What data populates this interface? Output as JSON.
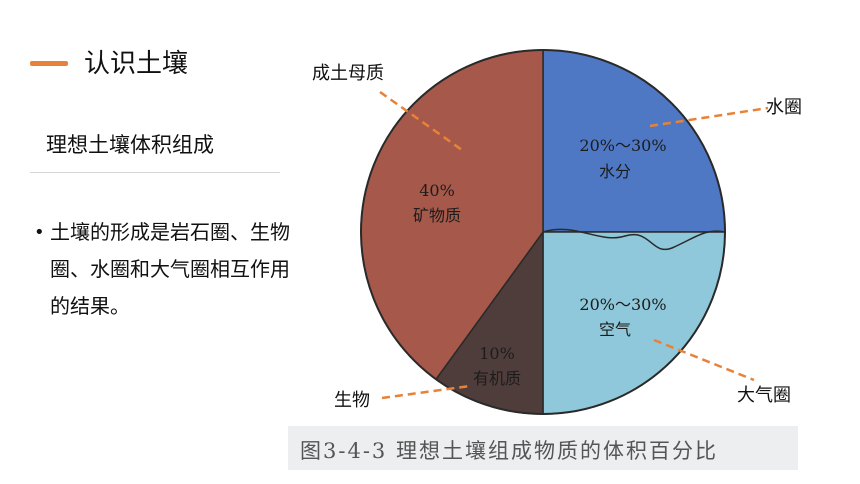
{
  "header": {
    "title": "认识土壤",
    "accent_color": "#e8823a"
  },
  "panel": {
    "subtitle": "理想土壤体积组成",
    "bullet_symbol": "•",
    "bullet_text": "土壤的形成是岩石圈、生物圈、水圈和大气圈相互作用的结果。"
  },
  "figure_caption": "图3-4-3   理想土壤组成物质的体积百分比",
  "chart_data": {
    "type": "pie",
    "title": "",
    "slices": [
      {
        "percent_label": "20%～30%",
        "name": "水分",
        "value": 25,
        "color": "#4f78c4",
        "callout": "水圈"
      },
      {
        "percent_label": "20%～30%",
        "name": "空气",
        "value": 25,
        "color": "#8ec8da",
        "callout": "大气圈"
      },
      {
        "percent_label": "10%",
        "name": "有机质",
        "value": 10,
        "color": "#4f3d3b",
        "callout": "生物"
      },
      {
        "percent_label": "40%",
        "name": "矿物质",
        "value": 40,
        "color": "#a6594a",
        "callout": "成土母质"
      }
    ],
    "callout_color": "#e8823a"
  }
}
